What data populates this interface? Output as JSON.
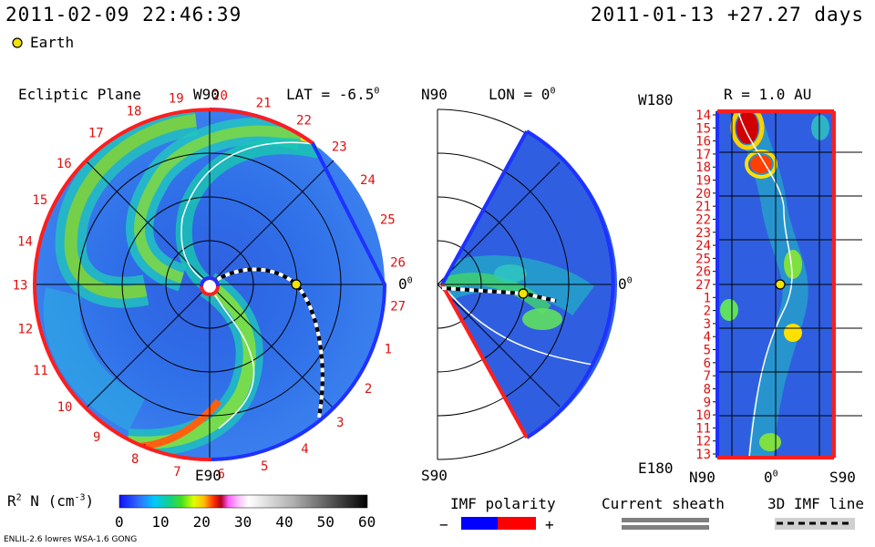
{
  "header": {
    "datetime": "2011-02-09 22:46:39",
    "reference": "2011-01-13 +27.27 days"
  },
  "legend": {
    "earth_label": "Earth",
    "earth_color": "#f2e300"
  },
  "ecliptic": {
    "title": "Ecliptic Plane",
    "top_label": "W90",
    "bottom_label": "E90",
    "right_label": "0",
    "lat_label": "LAT = -6.5",
    "lat_sup": "0",
    "carrington": [
      "27",
      "1",
      "2",
      "3",
      "4",
      "5",
      "6",
      "7",
      "8",
      "9",
      "10",
      "11",
      "12",
      "13",
      "14",
      "15",
      "16",
      "17",
      "18",
      "19",
      "20",
      "21",
      "22",
      "23",
      "24",
      "25",
      "26"
    ]
  },
  "meridional": {
    "top_label": "N90",
    "bottom_label": "S90",
    "right_label": "0",
    "lon_label": "LON = 0",
    "lon_sup": "0"
  },
  "sphere": {
    "r_label": "R = 1.0 AU",
    "top_label": "W180",
    "bottom_label": "E180",
    "x_left": "N90",
    "x_mid": "0",
    "x_right": "S90",
    "rows": [
      "14",
      "15",
      "16",
      "17",
      "18",
      "19",
      "20",
      "21",
      "22",
      "23",
      "24",
      "25",
      "26",
      "27",
      "1",
      "2",
      "3",
      "4",
      "5",
      "6",
      "7",
      "8",
      "9",
      "10",
      "11",
      "12",
      "13"
    ]
  },
  "colorbar": {
    "label_main": "R",
    "label_sup1": "2",
    "label_rest": " N (cm",
    "label_sup2": "-3",
    "label_end": ")",
    "ticks": [
      "0",
      "10",
      "20",
      "30",
      "40",
      "50",
      "60"
    ]
  },
  "imf": {
    "title": "IMF polarity",
    "minus": "−",
    "plus": "+",
    "neg_color": "#0000ff",
    "pos_color": "#ff0000"
  },
  "sheath": {
    "title": "Current sheath"
  },
  "imf_line": {
    "title": "3D IMF line"
  },
  "footer": {
    "model": "ENLIL-2.6 lowres WSA-1.6 GONG"
  }
}
